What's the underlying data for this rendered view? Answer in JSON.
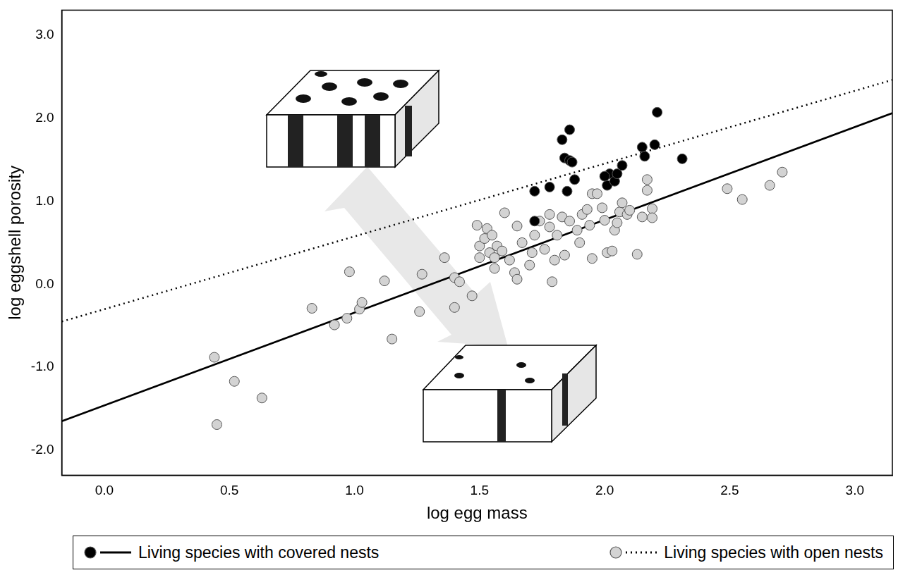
{
  "chart_data": {
    "type": "scatter",
    "x_label": "log egg mass",
    "y_label": "log eggshell porosity",
    "xlim": [
      -0.17,
      3.15
    ],
    "ylim": [
      -2.3,
      3.3
    ],
    "xticks": [
      {
        "value": 0,
        "label": "0.0"
      },
      {
        "value": 0.5,
        "label": "0.5"
      },
      {
        "value": 1,
        "label": "1.0"
      },
      {
        "value": 1.5,
        "label": "1.5"
      },
      {
        "value": 2,
        "label": "2.0"
      },
      {
        "value": 2.5,
        "label": "2.5"
      },
      {
        "value": 3,
        "label": "3.0"
      }
    ],
    "yticks": [
      {
        "value": -2,
        "label": "-2.0"
      },
      {
        "value": -1,
        "label": "-1.0"
      },
      {
        "value": 0,
        "label": "0.0"
      },
      {
        "value": 1,
        "label": "1.0"
      },
      {
        "value": 2,
        "label": "2.0"
      },
      {
        "value": 3,
        "label": "3.0"
      }
    ],
    "grid": false,
    "legend": "bottom",
    "series": [
      {
        "name": "Living species with covered nests",
        "color": "#000000",
        "marker": "circle",
        "line_style": "solid",
        "x": [
          1.72,
          1.72,
          1.78,
          1.83,
          1.86,
          1.84,
          1.86,
          1.87,
          1.85,
          1.88,
          2.01,
          2.02,
          2.04,
          2.05,
          2.07,
          2.15,
          2.16,
          2.2,
          2.21,
          2.31,
          2.0
        ],
        "values": [
          0.76,
          1.12,
          1.17,
          1.74,
          1.86,
          1.52,
          1.49,
          1.47,
          1.12,
          1.26,
          1.19,
          1.33,
          1.24,
          1.33,
          1.43,
          1.65,
          1.54,
          1.68,
          2.07,
          1.51,
          1.3
        ],
        "fit": {
          "x": [
            -0.17,
            3.15
          ],
          "values": [
            -1.65,
            2.06
          ]
        }
      },
      {
        "name": "Living species with open nests",
        "color": "#d3d3d3",
        "marker": "circle",
        "line_style": "dotted",
        "x": [
          0.44,
          0.52,
          0.63,
          0.45,
          0.83,
          0.92,
          0.97,
          0.98,
          1.02,
          1.03,
          1.12,
          1.15,
          1.26,
          1.27,
          1.36,
          1.4,
          1.4,
          1.42,
          1.47,
          1.49,
          1.5,
          1.5,
          1.53,
          1.52,
          1.54,
          1.55,
          1.56,
          1.57,
          1.59,
          1.56,
          1.6,
          1.62,
          1.64,
          1.65,
          1.65,
          1.67,
          1.7,
          1.71,
          1.72,
          1.74,
          1.76,
          1.78,
          1.78,
          1.79,
          1.8,
          1.81,
          1.83,
          1.84,
          1.86,
          1.89,
          1.9,
          1.91,
          1.93,
          1.94,
          1.95,
          1.95,
          1.97,
          1.99,
          2.0,
          2.01,
          2.03,
          2.04,
          2.05,
          2.06,
          2.07,
          2.09,
          2.1,
          2.13,
          2.15,
          2.17,
          2.17,
          2.19,
          2.19,
          2.49,
          2.55,
          2.66,
          2.71
        ],
        "values": [
          -0.88,
          -1.17,
          -1.37,
          -1.69,
          -0.29,
          -0.49,
          -0.41,
          0.15,
          -0.3,
          -0.22,
          0.04,
          -0.66,
          -0.33,
          0.12,
          0.32,
          -0.28,
          0.08,
          0.03,
          -0.14,
          0.71,
          0.46,
          0.32,
          0.67,
          0.55,
          0.38,
          0.59,
          0.32,
          0.46,
          0.4,
          0.19,
          0.86,
          0.29,
          0.14,
          0.7,
          0.06,
          0.5,
          0.23,
          0.38,
          0.59,
          0.76,
          0.42,
          0.69,
          0.84,
          0.03,
          0.29,
          0.59,
          0.81,
          0.35,
          0.76,
          0.65,
          0.5,
          0.84,
          0.9,
          0.71,
          1.09,
          0.31,
          1.09,
          0.92,
          0.77,
          0.38,
          0.4,
          0.65,
          0.74,
          0.87,
          0.98,
          0.84,
          0.89,
          0.36,
          0.81,
          1.26,
          1.13,
          0.91,
          0.8,
          1.15,
          1.02,
          1.19,
          1.35
        ],
        "fit": {
          "x": [
            -0.17,
            3.15
          ],
          "values": [
            -0.45,
            2.46
          ]
        }
      }
    ]
  }
}
